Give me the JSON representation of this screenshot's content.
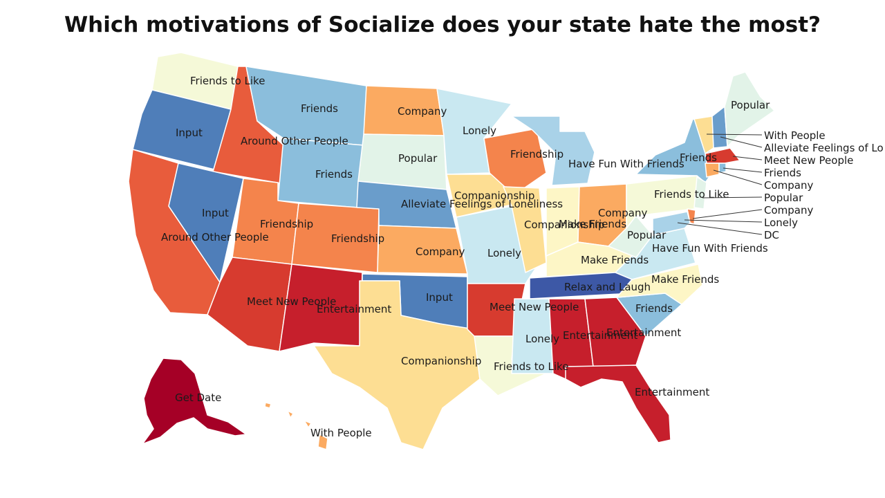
{
  "title": "Which motivations of Socialize does your state hate the most?",
  "colors": {
    "darkred": "#a50026",
    "red": "#c61f2c",
    "redorange": "#d73b2f",
    "orange_red": "#e85c3c",
    "orange": "#f4844c",
    "light_orange": "#fbaa61",
    "tan": "#fdde93",
    "cream": "#fdf6c6",
    "pale_cream": "#f5f9d8",
    "pale_green": "#e2f3e8",
    "pale_blue": "#c9e8f1",
    "light_blue": "#a9d2e8",
    "mid_blue": "#8bbedc",
    "blue": "#6a9dcb",
    "dark_blue": "#4f7eb9",
    "navy": "#3d58a6"
  },
  "labels": {
    "wa": "Friends to Like",
    "or": "Input",
    "ca": "Around Other People",
    "id": "Around Other People",
    "nv": "Input",
    "mt": "Friends",
    "wy": "Friends",
    "ut": "Friendship",
    "co": "Friendship",
    "az": "Meet New People",
    "nm": "Entertainment",
    "nd": "Company",
    "sd": "Popular",
    "ne": "Alleviate Feelings of Loneliness",
    "ks": "Company",
    "ok": "Input",
    "tx": "Companionship",
    "mn": "Lonely",
    "ia": "Companionship",
    "mo": "Lonely",
    "ar": "Meet New People",
    "la": "Friends to Like",
    "wi": "Friendship",
    "il": "Companionship",
    "mi": "Have Fun With Friends",
    "in": "Make Friends",
    "oh": "Company",
    "ky": "Make Friends",
    "tn": "Relax and Laugh",
    "ms": "Lonely",
    "al": "Entertainment",
    "ga": "Entertainment",
    "fl": "Entertainment",
    "sc": "Friends",
    "nc": "Make Friends",
    "va": "Have Fun With Friends",
    "wv": "Popular",
    "pa": "Friends to Like",
    "ny": "Friends",
    "me": "Popular",
    "ak": "Get Date",
    "hi": "With People",
    "ne_callouts": [
      "With People",
      "Alleviate Feelings of Lo",
      "Meet New People",
      "Friends",
      "Company",
      "Popular",
      "Company",
      "Lonely",
      "DC"
    ]
  }
}
